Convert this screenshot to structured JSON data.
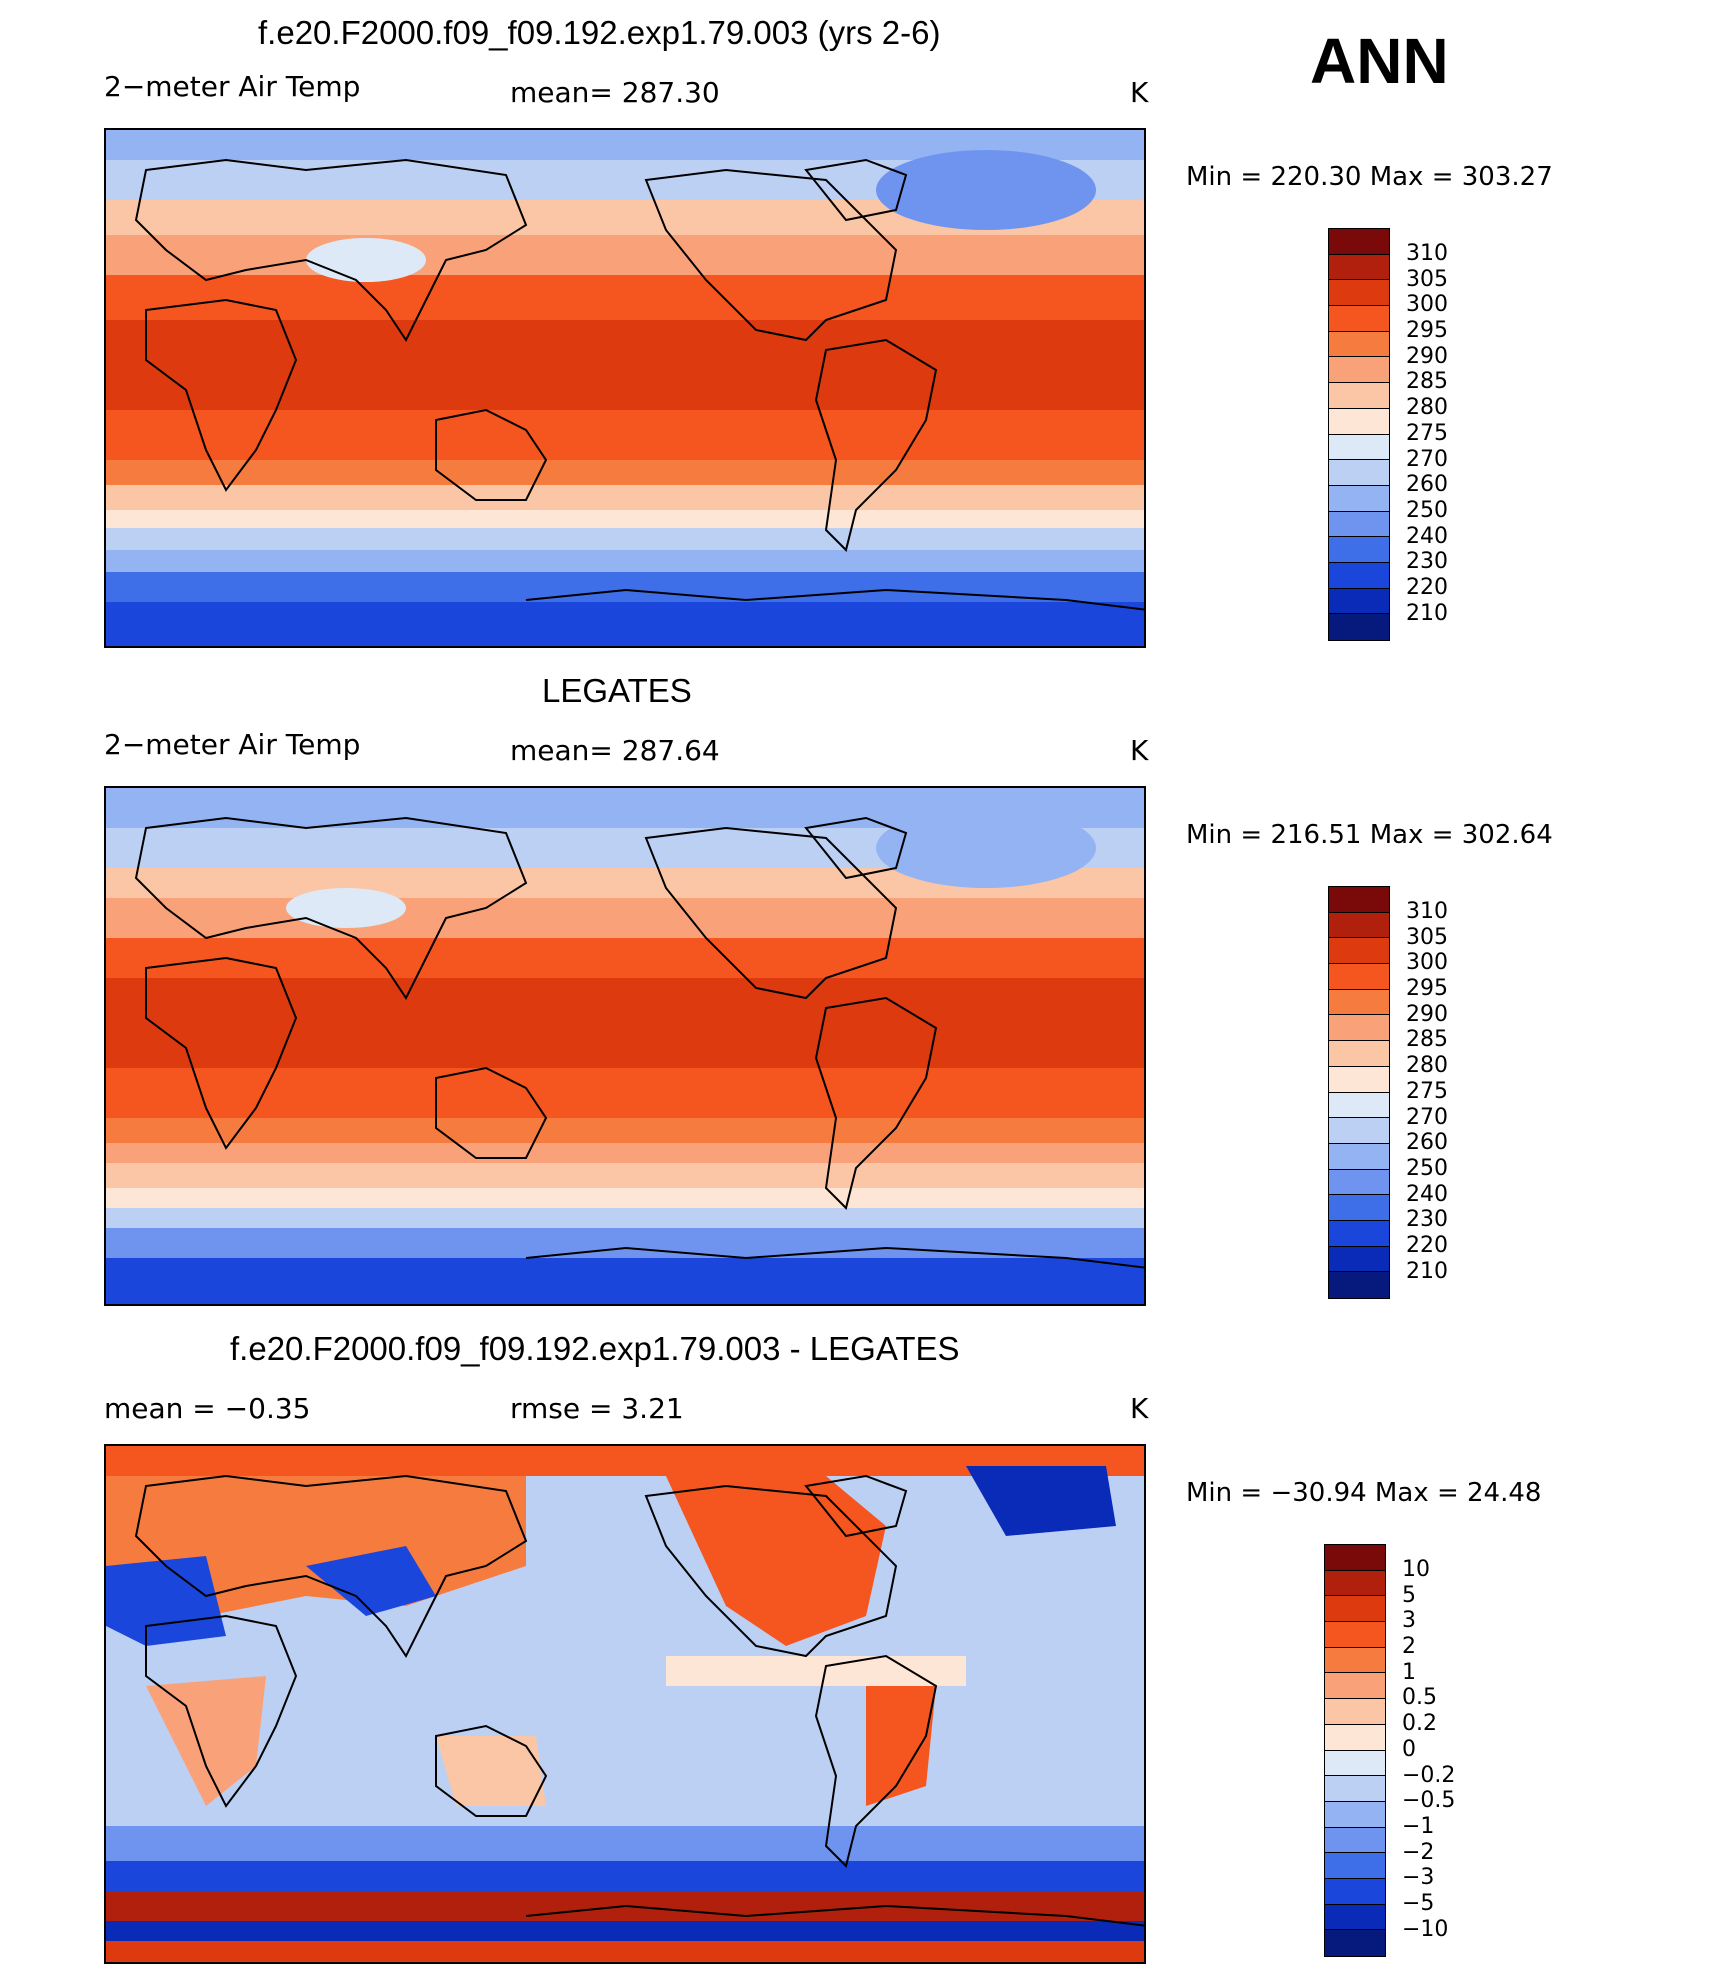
{
  "season": "ANN",
  "panels": [
    {
      "title": "f.e20.F2000.f09_f09.192.exp1.79.003 (yrs 2-6)",
      "left_label": "2−meter Air Temp",
      "center_label": "mean=  287.30",
      "right_label": "K",
      "minmax": "Min  =  220.30  Max  =  303.27",
      "kind": "field"
    },
    {
      "title": "LEGATES",
      "left_label": "2−meter Air Temp",
      "center_label": "mean=  287.64",
      "right_label": "K",
      "minmax": "Min  =  216.51  Max  =  302.64",
      "kind": "field"
    },
    {
      "title": "f.e20.F2000.f09_f09.192.exp1.79.003 - LEGATES",
      "left_label": "mean  =    −0.35",
      "center_label": "rmse  =     3.21",
      "right_label": "K",
      "minmax": "Min  =  −30.94  Max  =    24.48",
      "kind": "diff"
    }
  ],
  "colorbar_field": {
    "labels": [
      "310",
      "305",
      "300",
      "295",
      "290",
      "285",
      "280",
      "275",
      "270",
      "260",
      "250",
      "240",
      "230",
      "220",
      "210"
    ],
    "colors": [
      "#7a0a0a",
      "#b0200c",
      "#dd3a10",
      "#f5551e",
      "#f67b3e",
      "#f9a27a",
      "#fbc6a6",
      "#fde6d6",
      "#dde9f7",
      "#bcd0f4",
      "#93b3f3",
      "#6f94ef",
      "#3e6ee8",
      "#1a46dc",
      "#0a2bb8",
      "#061a7e"
    ]
  },
  "colorbar_diff": {
    "labels": [
      "10",
      "5",
      "3",
      "2",
      "1",
      "0.5",
      "0.2",
      "0",
      "−0.2",
      "−0.5",
      "−1",
      "−2",
      "−3",
      "−5",
      "−10"
    ],
    "colors": [
      "#7a0a0a",
      "#b0200c",
      "#dd3a10",
      "#f5551e",
      "#f67b3e",
      "#f9a27a",
      "#fbc6a6",
      "#fde6d6",
      "#dde9f7",
      "#bcd0f4",
      "#93b3f3",
      "#6f94ef",
      "#3e6ee8",
      "#1a46dc",
      "#0a2bb8",
      "#061a7e"
    ]
  }
}
